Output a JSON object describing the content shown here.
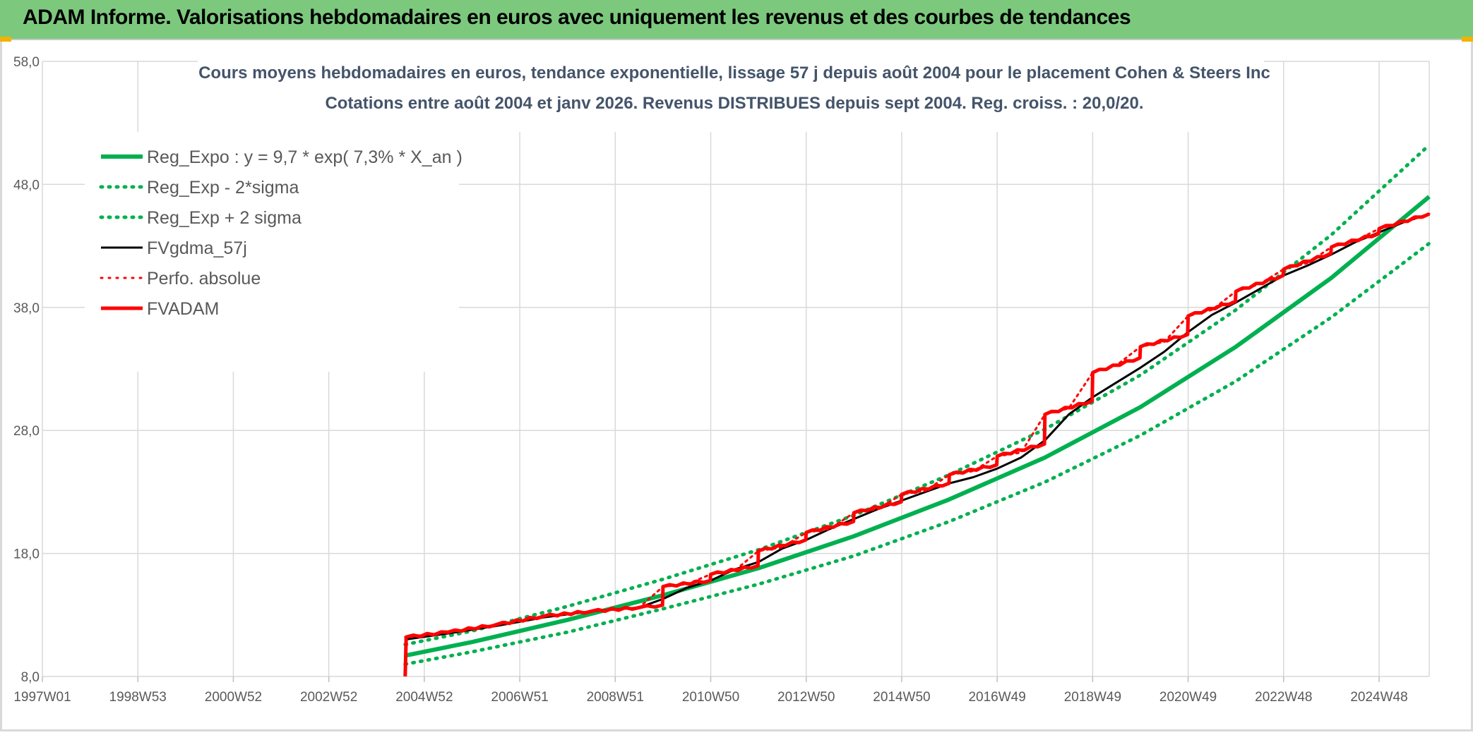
{
  "header": {
    "title": "ADAM Informe. Valorisations hebdomadaires en euros avec uniquement les revenus et des courbes de tendances"
  },
  "colors": {
    "header_bg": "#7cc97e",
    "reg_expo": "#00b050",
    "fvgdma": "#000000",
    "fvadam": "#ff0000",
    "grid": "#d9d9d9",
    "axis_text": "#595959",
    "title_text": "#44546a"
  },
  "chart_data": {
    "type": "line",
    "title_line1": "Cours moyens hebdomadaires en euros, tendance exponentielle, lissage 57 j depuis août 2004 pour le placement Cohen & Steers Inc",
    "title_line2": "Cotations entre août 2004 et janv 2026. Revenus DISTRIBUES depuis sept 2004. Reg. croiss. : 20,0/20.",
    "x_tick_labels": [
      "1997W01",
      "1998W53",
      "2000W52",
      "2002W52",
      "2004W52",
      "2006W51",
      "2008W51",
      "2010W50",
      "2012W50",
      "2014W50",
      "2016W49",
      "2018W49",
      "2020W49",
      "2022W48",
      "2024W48"
    ],
    "y_tick_labels": [
      "8,0",
      "18,0",
      "28,0",
      "38,0",
      "48,0",
      "58,0"
    ],
    "x_range_years": [
      1997.0,
      2026.05
    ],
    "ylim": [
      8,
      58
    ],
    "grid": true,
    "legend_position": "top-left",
    "legend": [
      {
        "label": "Reg_Expo : y = 9,7 * exp( 7,3% *  X_an )",
        "color": "#00b050",
        "style": "solid"
      },
      {
        "label": "Reg_Exp - 2*sigma",
        "color": "#00b050",
        "style": "dotted"
      },
      {
        "label": "Reg_Exp + 2 sigma",
        "color": "#00b050",
        "style": "dotted"
      },
      {
        "label": "FVgdma_57j",
        "color": "#000000",
        "style": "solid"
      },
      {
        "label": "Perfo. absolue",
        "color": "#ff0000",
        "style": "dotted"
      },
      {
        "label": "FVADAM",
        "color": "#ff0000",
        "style": "solid"
      }
    ],
    "series": [
      {
        "name": "Reg_Expo : y = 9,7 * exp( 7,3% *  X_an )",
        "x": [
          2004.6,
          2006,
          2008,
          2010,
          2012,
          2014,
          2016,
          2018,
          2020,
          2022,
          2024,
          2026.05
        ],
        "y": [
          9.7,
          10.8,
          12.6,
          14.6,
          16.8,
          19.4,
          22.4,
          25.8,
          29.9,
          34.8,
          40.4,
          47.0
        ]
      },
      {
        "name": "Reg_Exp - 2*sigma",
        "x": [
          2004.6,
          2006,
          2008,
          2010,
          2012,
          2014,
          2016,
          2018,
          2020,
          2022,
          2024,
          2026.05
        ],
        "y": [
          9.0,
          10.0,
          11.6,
          13.5,
          15.5,
          17.8,
          20.6,
          23.8,
          27.6,
          32.0,
          37.2,
          43.2
        ]
      },
      {
        "name": "Reg_Exp + 2 sigma",
        "x": [
          2004.6,
          2006,
          2008,
          2010,
          2012,
          2014,
          2016,
          2018,
          2020,
          2022,
          2024,
          2026.05
        ],
        "y": [
          10.6,
          11.7,
          13.7,
          15.9,
          18.3,
          21.1,
          24.4,
          28.1,
          32.5,
          37.8,
          43.9,
          51.2
        ]
      },
      {
        "name": "FVgdma_57j",
        "x": [
          2004.6,
          2005.5,
          2006.5,
          2007.5,
          2008.5,
          2009.5,
          2010.0,
          2010.5,
          2011.0,
          2011.5,
          2012.0,
          2012.5,
          2013.0,
          2013.5,
          2014.0,
          2014.5,
          2015.0,
          2015.5,
          2016.0,
          2016.5,
          2017.0,
          2017.5,
          2018.0,
          2018.5,
          2019.0,
          2019.5,
          2020.0,
          2020.5,
          2021.0,
          2021.5,
          2022.0,
          2022.5,
          2023.0,
          2023.5,
          2024.0,
          2024.5,
          2025.0,
          2025.5,
          2026.05
        ],
        "y": [
          11.0,
          11.5,
          12.1,
          12.8,
          13.3,
          13.6,
          14.3,
          15.2,
          15.8,
          16.7,
          17.3,
          18.4,
          19.1,
          20.0,
          20.8,
          21.6,
          22.3,
          23.0,
          23.7,
          24.2,
          24.9,
          25.8,
          27.2,
          29.3,
          30.7,
          31.9,
          33.1,
          34.4,
          36.0,
          37.4,
          38.4,
          39.5,
          40.6,
          41.4,
          42.3,
          43.3,
          44.1,
          44.9,
          45.6
        ]
      },
      {
        "name": "Perfo. absolue",
        "x": [
          2004.6,
          2005.5,
          2006.5,
          2007.5,
          2008.5,
          2009.5,
          2010.0,
          2010.5,
          2011.0,
          2011.5,
          2012.0,
          2012.5,
          2013.0,
          2013.5,
          2014.0,
          2014.5,
          2015.0,
          2015.5,
          2016.0,
          2016.5,
          2017.0,
          2017.5,
          2018.0,
          2018.5,
          2019.0,
          2019.5,
          2020.0,
          2020.5,
          2021.0,
          2021.5,
          2022.0,
          2022.5,
          2023.0,
          2023.5,
          2024.0,
          2024.5,
          2025.0,
          2025.5,
          2026.05
        ],
        "y": [
          11.2,
          11.6,
          12.2,
          12.9,
          13.3,
          13.6,
          15.3,
          15.5,
          16.3,
          16.6,
          18.2,
          18.5,
          19.7,
          20.0,
          21.3,
          21.6,
          22.8,
          23.1,
          24.4,
          24.7,
          25.9,
          26.2,
          29.3,
          29.8,
          32.7,
          33.3,
          34.8,
          35.2,
          37.3,
          37.8,
          39.3,
          39.9,
          41.1,
          41.6,
          42.9,
          43.4,
          44.4,
          44.9,
          45.6
        ]
      },
      {
        "name": "FVADAM",
        "x": [
          2004.6,
          2004.62,
          2005.5,
          2006.5,
          2007.5,
          2008.5,
          2009.5,
          2009.99,
          2010.0,
          2010.99,
          2011.0,
          2011.99,
          2012.0,
          2012.99,
          2013.0,
          2013.99,
          2014.0,
          2014.99,
          2015.0,
          2015.99,
          2016.0,
          2016.99,
          2017.0,
          2017.99,
          2018.0,
          2018.99,
          2019.0,
          2019.99,
          2020.0,
          2020.99,
          2021.0,
          2021.99,
          2022.0,
          2022.99,
          2023.0,
          2023.99,
          2024.0,
          2024.99,
          2025.0,
          2026.05
        ],
        "y": [
          8.0,
          11.2,
          11.6,
          12.2,
          12.9,
          13.3,
          13.6,
          13.8,
          15.3,
          15.8,
          16.3,
          17.0,
          18.2,
          19.1,
          19.7,
          20.6,
          21.3,
          22.2,
          22.8,
          23.7,
          24.4,
          25.2,
          25.9,
          26.9,
          29.3,
          30.4,
          32.7,
          33.9,
          34.8,
          35.8,
          37.3,
          38.5,
          39.3,
          40.6,
          41.1,
          42.4,
          42.9,
          44.0,
          44.4,
          45.6
        ]
      }
    ]
  }
}
